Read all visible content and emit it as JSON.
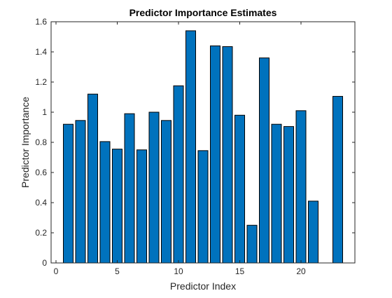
{
  "chart_data": {
    "type": "bar",
    "title": "Predictor Importance Estimates",
    "xlabel": "Predictor Index",
    "ylabel": "Predictor Importance",
    "x": [
      1,
      2,
      3,
      4,
      5,
      6,
      7,
      8,
      9,
      10,
      11,
      12,
      13,
      14,
      15,
      16,
      17,
      18,
      19,
      20,
      21,
      22,
      23
    ],
    "values": [
      0.92,
      0.945,
      1.12,
      0.805,
      0.755,
      0.99,
      0.75,
      1.0,
      0.945,
      1.175,
      1.54,
      0.745,
      1.44,
      1.435,
      0.98,
      0.25,
      1.36,
      0.92,
      0.905,
      1.01,
      0.41,
      0,
      1.105
    ],
    "xlim": [
      -0.4,
      24.4
    ],
    "ylim": [
      0,
      1.6
    ],
    "xticks": [
      0,
      5,
      10,
      15,
      20
    ],
    "xtick_labels": [
      "0",
      "5",
      "10",
      "15",
      "20"
    ],
    "yticks": [
      0,
      0.2,
      0.4,
      0.6,
      0.8,
      1.0,
      1.2,
      1.4,
      1.6
    ],
    "ytick_labels": [
      "0",
      "0.2",
      "0.4",
      "0.6",
      "0.8",
      "1",
      "1.2",
      "1.4",
      "1.6"
    ],
    "grid": false,
    "box": true,
    "bar_color": "#0072BD",
    "edge_color": "#000000"
  }
}
